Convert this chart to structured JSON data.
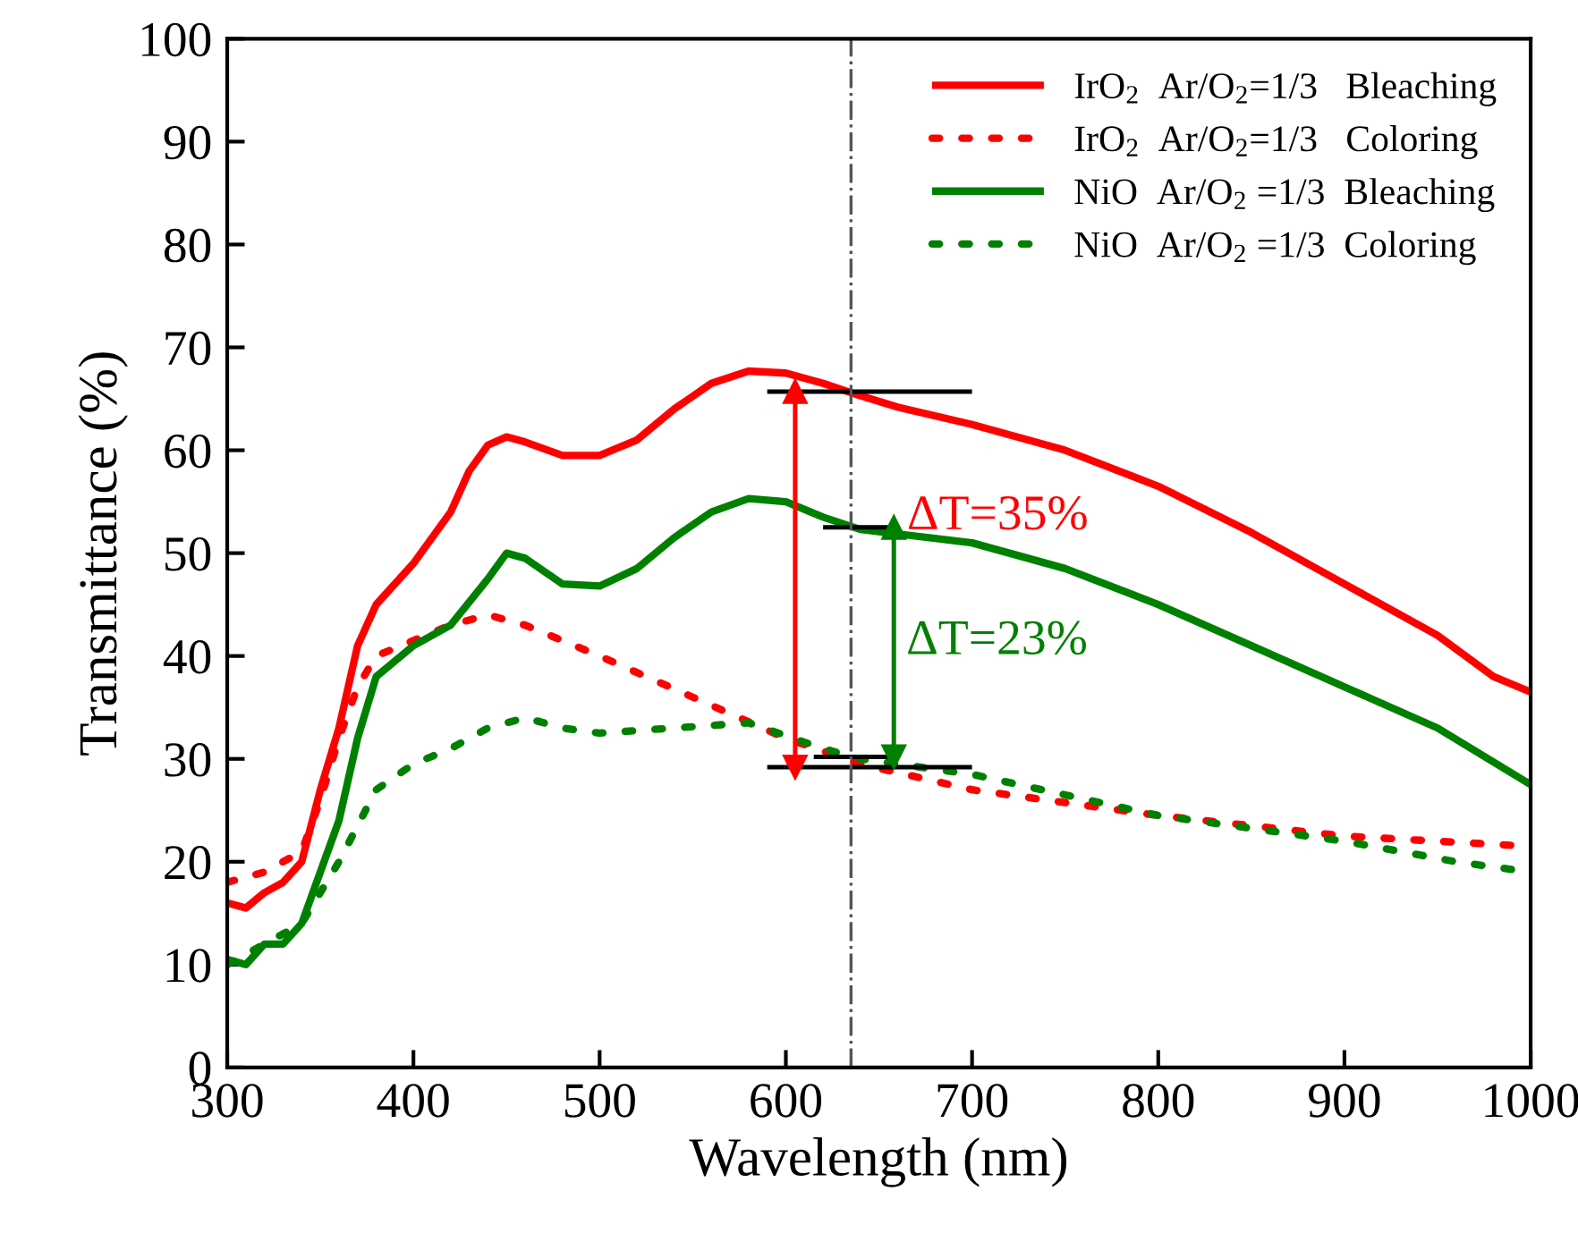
{
  "chart_data": {
    "type": "line",
    "xlabel": "Wavelength (nm)",
    "ylabel": "Transmittance (%)",
    "xlim": [
      300,
      1000
    ],
    "ylim": [
      0,
      100
    ],
    "xticks": [
      300,
      400,
      500,
      600,
      700,
      800,
      900,
      1000
    ],
    "yticks": [
      0,
      10,
      20,
      30,
      40,
      50,
      60,
      70,
      80,
      90,
      100
    ],
    "grid": false,
    "legend": "top right",
    "series": [
      {
        "name": "IrO$_{2}$  Ar/O$_{2}$=1/3   Bleaching",
        "color": "#ff0000",
        "line_style": "solid",
        "x": [
          300,
          310,
          320,
          330,
          340,
          350,
          360,
          370,
          380,
          400,
          420,
          430,
          440,
          450,
          460,
          480,
          500,
          520,
          540,
          560,
          580,
          600,
          620,
          640,
          660,
          700,
          750,
          800,
          850,
          900,
          950,
          980,
          1000
        ],
        "values": [
          16,
          15.5,
          17,
          18,
          20,
          27,
          33,
          41,
          45,
          49,
          54,
          58,
          60.5,
          61.3,
          60.8,
          59.5,
          59.5,
          61,
          64,
          66.5,
          67.7,
          67.5,
          66.5,
          65.3,
          64.2,
          62.5,
          60,
          56.5,
          52,
          47,
          42,
          38,
          36.5
        ]
      },
      {
        "name": "IrO$_{2}$  Ar/O$_{2}$=1/3   Coloring",
        "color": "#ff0000",
        "line_style": "dotted",
        "x": [
          300,
          320,
          340,
          350,
          360,
          370,
          380,
          400,
          420,
          440,
          460,
          500,
          550,
          600,
          640,
          700,
          800,
          900,
          1000
        ],
        "values": [
          18,
          19,
          21,
          26,
          32,
          37,
          40,
          41.5,
          43,
          44,
          43,
          40,
          36,
          32,
          29.5,
          27,
          24.5,
          22.5,
          21.5
        ]
      },
      {
        "name": "NiO  Ar/O$_{2}$ =1/3  Bleaching",
        "color": "#008000",
        "line_style": "solid",
        "x": [
          300,
          310,
          320,
          330,
          340,
          350,
          360,
          370,
          380,
          400,
          420,
          440,
          450,
          460,
          480,
          500,
          520,
          540,
          560,
          580,
          600,
          620,
          640,
          700,
          750,
          800,
          850,
          900,
          950,
          1000
        ],
        "values": [
          10.5,
          10,
          12,
          12,
          14,
          19,
          24,
          32,
          38,
          41,
          43,
          47.5,
          50,
          49.5,
          47,
          46.8,
          48.5,
          51.5,
          54,
          55.3,
          55,
          53.5,
          52.3,
          51,
          48.5,
          45,
          41,
          37,
          33,
          27.5
        ]
      },
      {
        "name": "NiO  Ar/O$_{2}$ =1/3  Coloring",
        "color": "#008000",
        "line_style": "dotted",
        "x": [
          300,
          320,
          340,
          360,
          380,
          400,
          420,
          440,
          460,
          480,
          500,
          540,
          580,
          620,
          640,
          700,
          800,
          900,
          960,
          1000
        ],
        "values": [
          10,
          12,
          14,
          20,
          27,
          29.5,
          31,
          33,
          34,
          33,
          32.5,
          33,
          33.5,
          31,
          30,
          28.5,
          24.5,
          22,
          20,
          19
        ]
      },
      {
        "color": "#000000",
        "line_style": "solid",
        "x": [
          590,
          700
        ],
        "values": [
          65.7,
          65.7
        ]
      },
      {
        "color": "#000000",
        "line_style": "solid",
        "x": [
          590,
          700
        ],
        "values": [
          29.2,
          29.2
        ]
      },
      {
        "color": "#000000",
        "line_style": "solid",
        "x": [
          620,
          660
        ],
        "values": [
          52.5,
          52.5
        ]
      },
      {
        "color": "#000000",
        "line_style": "solid",
        "x": [
          615,
          660
        ],
        "values": [
          30.2,
          30.2
        ]
      },
      {
        "color": "#ff0000",
        "line_style": "solid",
        "marker": "triangle",
        "x": [
          605,
          605
        ],
        "values": [
          29.2,
          65.7
        ]
      },
      {
        "color": "#008000",
        "line_style": "solid",
        "marker": "triangle",
        "x": [
          658,
          658
        ],
        "values": [
          30.2,
          52.5
        ]
      }
    ],
    "ref_lines": [
      {
        "axis": "x",
        "value": 635,
        "color": "#555555",
        "line_style": "dashdot"
      }
    ],
    "annotations": [
      "ΔT=35%",
      "ΔT=23%"
    ]
  }
}
